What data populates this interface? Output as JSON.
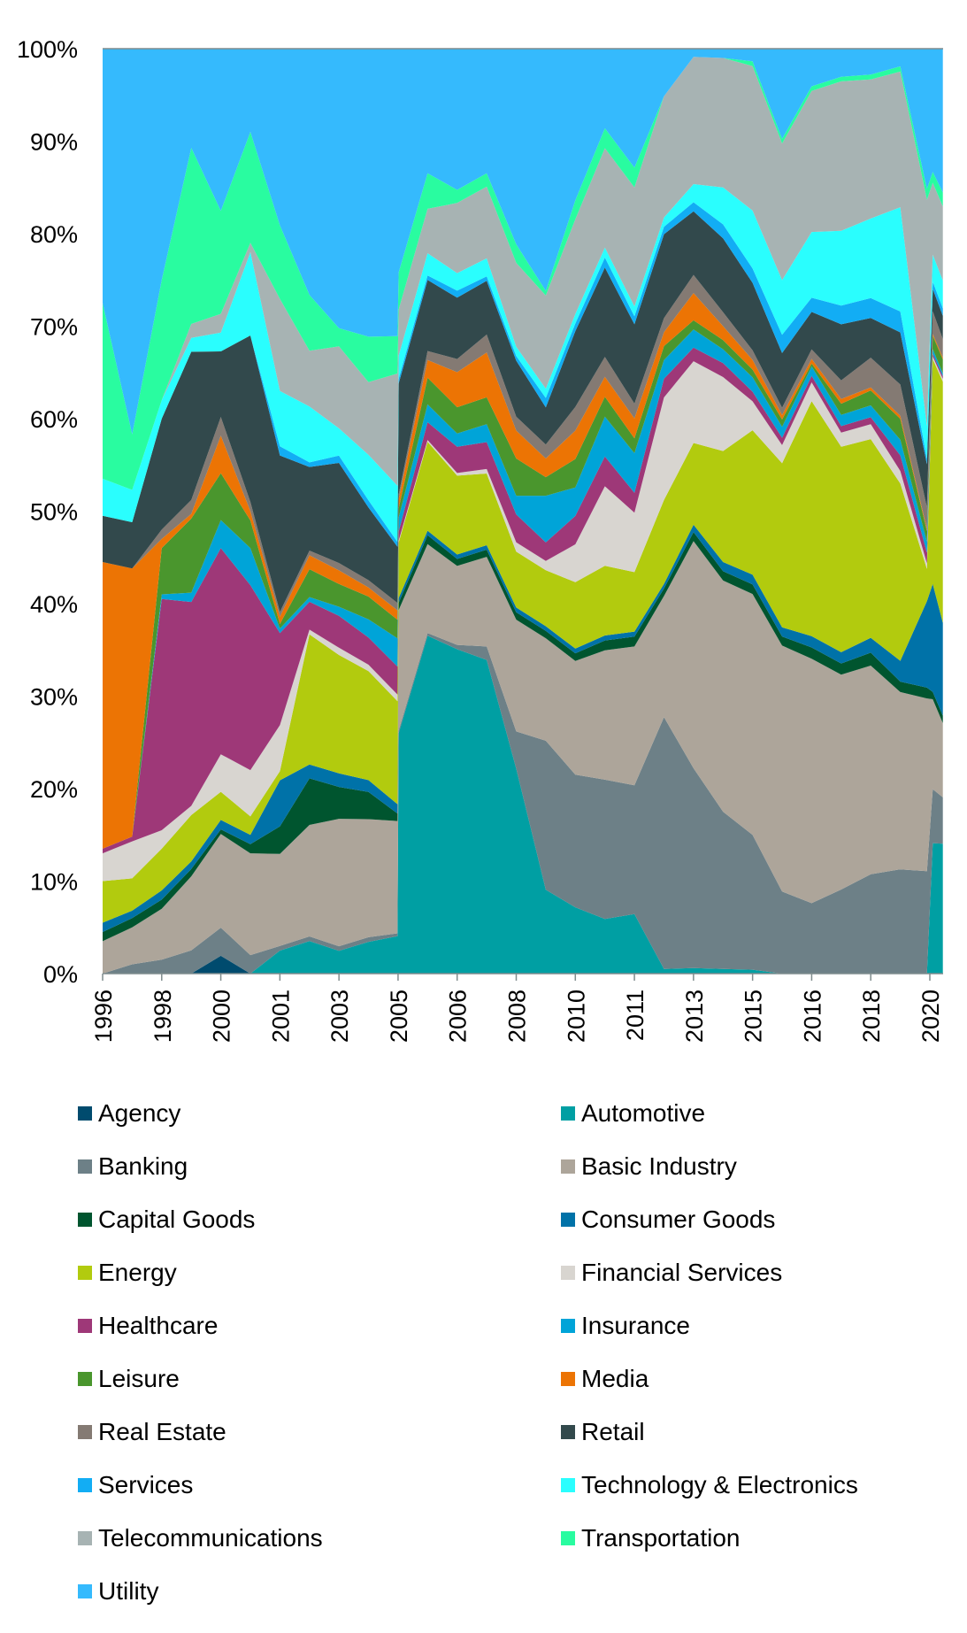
{
  "chart_data": {
    "type": "area",
    "stacked": true,
    "normalized": true,
    "title": "",
    "xlabel": "",
    "ylabel": "",
    "ylim": [
      0,
      100
    ],
    "y_ticks": [
      "0%",
      "10%",
      "20%",
      "30%",
      "40%",
      "50%",
      "60%",
      "70%",
      "80%",
      "90%",
      "100%"
    ],
    "x_ticks": [
      "1996",
      "1998",
      "2000",
      "2001",
      "2003",
      "2005",
      "2006",
      "2008",
      "2010",
      "2011",
      "2013",
      "2015",
      "2016",
      "2018",
      "2020"
    ],
    "x_tick_index_note": "x values below are positions measured in tick intervals (0 = first tick '1996', 14 = last tick '2020')",
    "x": [
      0,
      0.5,
      1,
      1.5,
      2,
      2.5,
      3,
      3.5,
      4,
      4.5,
      4.99,
      5.01,
      5.5,
      6,
      6.5,
      7,
      7.5,
      8,
      8.5,
      9,
      9.5,
      10,
      10.5,
      11,
      11.5,
      12,
      12.5,
      13,
      13.5,
      13.95,
      14.05,
      14.22
    ],
    "legend_position": "bottom",
    "series": [
      {
        "name": "Agency",
        "color": "#004b6e",
        "values": [
          0,
          0,
          0,
          0,
          1.9,
          0,
          0,
          0,
          0,
          0,
          0,
          0,
          0,
          0,
          0,
          0,
          0,
          0,
          0,
          0,
          0,
          0,
          0,
          0,
          0,
          0,
          0,
          0,
          0,
          0,
          0,
          0
        ]
      },
      {
        "name": "Automotive",
        "color": "#009fa3",
        "values": [
          0,
          0,
          0,
          0,
          0,
          0,
          2.5,
          3.5,
          2.5,
          3.5,
          4,
          26,
          38,
          37,
          35,
          22,
          9,
          7,
          5.5,
          6,
          0.5,
          0.6,
          0.5,
          0.4,
          0,
          0,
          0,
          0,
          0,
          0,
          14.5,
          14
        ]
      },
      {
        "name": "Banking",
        "color": "#6d8087",
        "values": [
          0,
          1,
          1.5,
          2.5,
          3,
          2,
          0.5,
          0.5,
          0.5,
          0.5,
          0.3,
          0.3,
          0.3,
          0.5,
          1.5,
          4,
          16,
          14,
          14,
          13,
          27,
          22,
          17,
          14,
          9,
          7.5,
          9,
          10,
          10,
          9.5,
          6,
          5
        ]
      },
      {
        "name": "Basic Industry",
        "color": "#ada59a",
        "values": [
          3.5,
          4,
          5.5,
          8,
          10,
          11,
          10,
          12,
          14,
          13,
          12,
          13,
          10,
          9,
          10,
          12,
          11,
          12,
          13,
          14,
          13,
          25,
          25,
          25,
          27,
          26,
          23,
          21,
          17,
          16,
          10,
          8
        ]
      },
      {
        "name": "Capital Goods",
        "color": "#00552f",
        "values": [
          1,
          1,
          1,
          0.8,
          0.5,
          1,
          3,
          5,
          3.5,
          3,
          0.8,
          0.8,
          1,
          0.8,
          0.8,
          0.8,
          0.8,
          0.8,
          1,
          1,
          0.8,
          1,
          1,
          1,
          1,
          1.2,
          1.2,
          1.3,
          1,
          1,
          0.8,
          0.8
        ]
      },
      {
        "name": "Consumer Goods",
        "color": "#0072a8",
        "values": [
          1,
          0.8,
          1,
          0.8,
          1,
          1,
          5,
          1.5,
          1.5,
          1.3,
          1,
          0.5,
          0.5,
          0.5,
          0.5,
          0.5,
          0.5,
          0.5,
          0.5,
          0.5,
          0.5,
          0.8,
          1,
          1,
          1,
          1.2,
          1.2,
          1.5,
          2,
          8,
          12,
          10
        ]
      },
      {
        "name": "Energy",
        "color": "#b2cb0e",
        "values": [
          4.5,
          3.5,
          4.5,
          5,
          3,
          2,
          1,
          14,
          13,
          12,
          11,
          6,
          10,
          9,
          8,
          6,
          6,
          7,
          7,
          6,
          9,
          9,
          12,
          15,
          18,
          25,
          22,
          20,
          17,
          3,
          25,
          26
        ]
      },
      {
        "name": "Financial Services",
        "color": "#d8d5d0",
        "values": [
          3,
          4,
          2,
          1,
          4,
          5,
          5,
          0.5,
          0.8,
          0.7,
          0.7,
          0.2,
          0.2,
          0.3,
          0.5,
          1,
          1,
          4,
          8,
          6,
          11,
          9,
          8,
          3,
          2,
          2,
          1.5,
          1.5,
          1.2,
          0.5,
          0.3,
          0.3
        ]
      },
      {
        "name": "Healthcare",
        "color": "#9e3878",
        "values": [
          0.5,
          0.5,
          25,
          22,
          22,
          20,
          10,
          3,
          3.5,
          3,
          3,
          1,
          2,
          3,
          3,
          3,
          2,
          3,
          3,
          2,
          2,
          1.5,
          1.5,
          1,
          0.8,
          0.7,
          0.7,
          0.7,
          1.5,
          1,
          0.3,
          0.3
        ]
      },
      {
        "name": "Insurance",
        "color": "#00a4d8",
        "values": [
          0,
          0,
          0.5,
          1,
          3,
          4,
          0.5,
          0.5,
          1,
          2,
          3,
          1.5,
          2,
          1.5,
          2,
          2,
          5,
          3,
          4,
          4,
          2,
          2,
          1.5,
          1.5,
          1.2,
          1,
          1.2,
          1.2,
          1.5,
          1,
          0.5,
          0.3
        ]
      },
      {
        "name": "Leisure",
        "color": "#4a962d",
        "values": [
          0,
          0,
          5,
          8,
          5,
          3,
          0.5,
          3,
          2.5,
          2.5,
          2,
          1,
          3,
          3,
          3,
          4,
          2,
          3,
          2,
          1.5,
          1.5,
          1,
          1,
          0.8,
          0.8,
          0.3,
          1.2,
          1.5,
          2,
          1,
          1.5,
          1.5
        ]
      },
      {
        "name": "Media",
        "color": "#ec7404",
        "values": [
          31,
          29,
          1,
          0.5,
          4,
          1,
          0.8,
          1.5,
          1.5,
          1,
          1,
          1,
          2,
          4,
          5,
          3,
          2,
          3,
          2,
          2,
          1.5,
          3,
          1.5,
          1,
          0.5,
          0.5,
          0.5,
          0.3,
          0.3,
          0.2,
          0.2,
          0.2
        ]
      },
      {
        "name": "Real Estate",
        "color": "#847a73",
        "values": [
          0,
          0,
          1,
          1.5,
          2,
          1,
          0.5,
          0.5,
          0.8,
          0.8,
          0.8,
          0.5,
          1,
          1.5,
          2,
          1.5,
          1.5,
          2.5,
          2,
          1.5,
          1.5,
          2,
          1.5,
          1,
          0.8,
          1,
          2,
          3,
          3,
          2,
          2.5,
          2
        ]
      },
      {
        "name": "Retail",
        "color": "#32494c",
        "values": [
          5,
          5,
          12,
          16,
          7,
          18,
          17,
          9,
          11,
          8,
          6,
          12,
          8,
          7,
          6,
          6,
          4,
          8,
          9,
          8,
          9,
          7,
          8,
          7,
          6,
          4,
          6,
          4,
          5,
          4,
          2.5,
          2.5
        ]
      },
      {
        "name": "Services",
        "color": "#12adf4",
        "values": [
          0,
          0,
          0,
          0,
          0,
          0,
          1,
          0.5,
          0.8,
          0.8,
          0.5,
          0.5,
          0.5,
          0.8,
          0.5,
          0.5,
          1,
          0.8,
          1,
          0.8,
          0.8,
          1,
          1.5,
          1.5,
          2,
          1.5,
          2,
          2,
          2,
          0.5,
          0.8,
          0.8
        ]
      },
      {
        "name": "Technology & Electronics",
        "color": "#2afefe",
        "values": [
          4,
          3.5,
          2,
          1.5,
          2,
          9,
          6,
          6,
          3,
          5,
          6,
          2.5,
          2.5,
          2,
          2,
          1,
          1,
          1,
          1,
          1,
          1,
          2,
          4,
          6,
          6,
          7,
          8,
          8,
          10,
          3,
          3,
          3
        ]
      },
      {
        "name": "Telecommunications",
        "color": "#a7b3b3",
        "values": [
          0,
          0,
          0,
          1.5,
          2,
          1,
          10,
          6,
          9,
          8,
          12,
          5,
          5,
          8,
          8,
          9,
          10,
          10,
          10,
          12,
          13,
          14,
          14,
          15,
          15,
          15,
          16,
          14,
          13,
          21,
          8,
          8
        ]
      },
      {
        "name": "Transportation",
        "color": "#29fca0",
        "values": [
          19,
          6,
          13,
          19,
          11,
          12,
          8,
          6,
          2,
          5,
          4,
          4,
          4,
          1.5,
          1.5,
          2,
          0.5,
          2,
          2,
          2,
          0,
          0,
          0,
          0.5,
          0.5,
          0.5,
          0.5,
          0.5,
          0.5,
          1,
          1.2,
          1.5
        ]
      },
      {
        "name": "Utility",
        "color": "#35bafd",
        "values": [
          27.5,
          41.7,
          25,
          10.7,
          17.3,
          9,
          19.2,
          26.5,
          30.7,
          31.7,
          30.7,
          24.2,
          14,
          16.1,
          13.9,
          21,
          26,
          16,
          8,
          12,
          5.1,
          0.9,
          1,
          1.3,
          9.9,
          4,
          3,
          2.6,
          1.7,
          13,
          13.7,
          15.5
        ]
      }
    ]
  },
  "legend": {
    "items": [
      {
        "label": "Agency",
        "color": "#004b6e"
      },
      {
        "label": "Automotive",
        "color": "#009fa3"
      },
      {
        "label": "Banking",
        "color": "#6d8087"
      },
      {
        "label": "Basic Industry",
        "color": "#ada59a"
      },
      {
        "label": "Capital Goods",
        "color": "#00552f"
      },
      {
        "label": "Consumer Goods",
        "color": "#0072a8"
      },
      {
        "label": "Energy",
        "color": "#b2cb0e"
      },
      {
        "label": "Financial Services",
        "color": "#d8d5d0"
      },
      {
        "label": "Healthcare",
        "color": "#9e3878"
      },
      {
        "label": "Insurance",
        "color": "#00a4d8"
      },
      {
        "label": "Leisure",
        "color": "#4a962d"
      },
      {
        "label": "Media",
        "color": "#ec7404"
      },
      {
        "label": "Real Estate",
        "color": "#847a73"
      },
      {
        "label": "Retail",
        "color": "#32494c"
      },
      {
        "label": "Services",
        "color": "#12adf4"
      },
      {
        "label": "Technology & Electronics",
        "color": "#2afefe"
      },
      {
        "label": "Telecommunications",
        "color": "#a7b3b3"
      },
      {
        "label": "Transportation",
        "color": "#29fca0"
      },
      {
        "label": "Utility",
        "color": "#35bafd"
      }
    ]
  },
  "axis_color": "#7f8c8d"
}
